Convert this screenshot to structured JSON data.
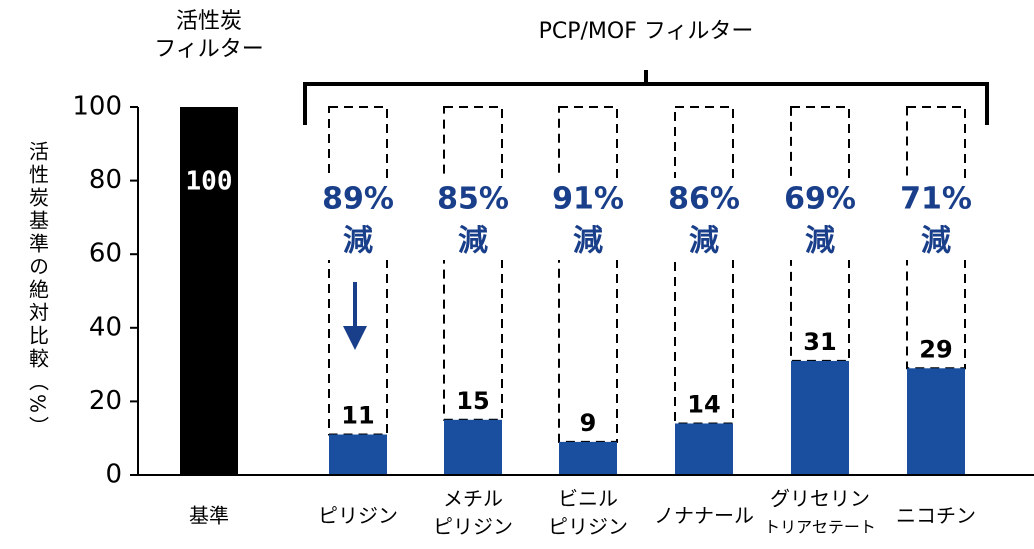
{
  "chart_data": {
    "type": "bar",
    "y_label": "活性炭基準の絶対比較（%）",
    "groups": [
      {
        "label": [
          "活性炭",
          "フィルター"
        ]
      },
      {
        "label": [
          "PCP/MOF フィルター"
        ]
      }
    ],
    "categories": [
      [
        "基準"
      ],
      [
        "ピリジン"
      ],
      [
        "メチル",
        "ピリジン"
      ],
      [
        "ビニル",
        "ピリジン"
      ],
      [
        "ノナナール"
      ],
      [
        "グリセリン",
        "トリアセテート"
      ],
      [
        "ニコチン"
      ]
    ],
    "values": [
      100,
      11,
      15,
      9,
      14,
      31,
      29
    ],
    "colors": [
      "#000000",
      "#1a4fa0",
      "#1a4fa0",
      "#1a4fa0",
      "#1a4fa0",
      "#1a4fa0",
      "#1a4fa0"
    ],
    "reduction_labels": [
      null,
      "89%",
      "85%",
      "91%",
      "86%",
      "69%",
      "71%"
    ],
    "reduction_suffix": "減",
    "ylim": [
      0,
      100
    ],
    "yticks": [
      0,
      20,
      40,
      60,
      80,
      100
    ]
  }
}
